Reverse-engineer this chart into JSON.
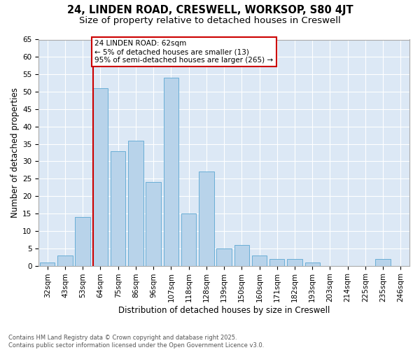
{
  "title_line1": "24, LINDEN ROAD, CRESWELL, WORKSOP, S80 4JT",
  "title_line2": "Size of property relative to detached houses in Creswell",
  "xlabel": "Distribution of detached houses by size in Creswell",
  "ylabel": "Number of detached properties",
  "categories": [
    "32sqm",
    "43sqm",
    "53sqm",
    "64sqm",
    "75sqm",
    "86sqm",
    "96sqm",
    "107sqm",
    "118sqm",
    "128sqm",
    "139sqm",
    "150sqm",
    "160sqm",
    "171sqm",
    "182sqm",
    "193sqm",
    "203sqm",
    "214sqm",
    "225sqm",
    "235sqm",
    "246sqm"
  ],
  "values": [
    1,
    3,
    14,
    51,
    33,
    36,
    24,
    54,
    15,
    27,
    5,
    6,
    3,
    2,
    2,
    1,
    0,
    0,
    0,
    2,
    0
  ],
  "bar_color": "#b8d3ea",
  "bar_edge_color": "#6aaed6",
  "vline_color": "#cc0000",
  "annotation_text": "24 LINDEN ROAD: 62sqm\n← 5% of detached houses are smaller (13)\n95% of semi-detached houses are larger (265) →",
  "annotation_box_facecolor": "#ffffff",
  "annotation_border_color": "#cc0000",
  "ylim_max": 65,
  "yticks": [
    0,
    5,
    10,
    15,
    20,
    25,
    30,
    35,
    40,
    45,
    50,
    55,
    60,
    65
  ],
  "bg_color": "#dce8f5",
  "grid_color": "#ffffff",
  "footer_text": "Contains HM Land Registry data © Crown copyright and database right 2025.\nContains public sector information licensed under the Open Government Licence v3.0.",
  "title_fontsize": 10.5,
  "subtitle_fontsize": 9.5,
  "ylabel_fontsize": 8.5,
  "xlabel_fontsize": 8.5,
  "tick_fontsize": 7.5,
  "annotation_fontsize": 7.5,
  "footer_fontsize": 6.0
}
